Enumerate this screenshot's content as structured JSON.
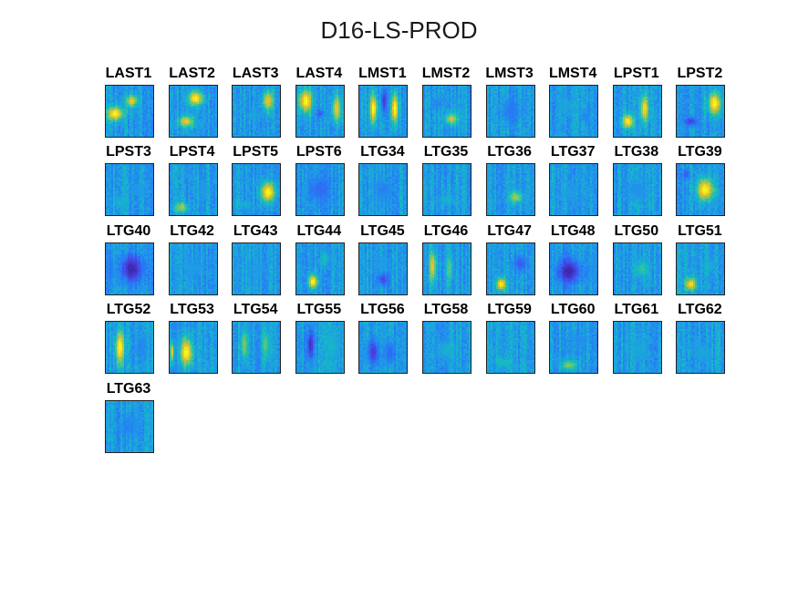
{
  "title": "D16-LS-PROD",
  "chart_data": {
    "type": "heatmap",
    "title": "D16-LS-PROD",
    "colormap": "parula",
    "colors": {
      "low": "#3e26a8",
      "mid": "#2f9ef0",
      "high": "#f9fb15"
    },
    "panels": [
      {
        "label": "LAST1",
        "blobs": [
          [
            0.2,
            0.55,
            0.45,
            0.35,
            1.0
          ],
          [
            0.55,
            0.3,
            0.3,
            0.3,
            0.9
          ]
        ]
      },
      {
        "label": "LAST2",
        "blobs": [
          [
            0.55,
            0.25,
            0.4,
            0.35,
            1.0
          ],
          [
            0.35,
            0.7,
            0.4,
            0.3,
            0.9
          ]
        ]
      },
      {
        "label": "LAST3",
        "blobs": [
          [
            0.75,
            0.3,
            0.3,
            0.5,
            0.9
          ],
          [
            0.45,
            0.6,
            0.3,
            0.2,
            0.5
          ]
        ]
      },
      {
        "label": "LAST4",
        "blobs": [
          [
            0.2,
            0.3,
            0.35,
            0.6,
            1.0
          ],
          [
            0.85,
            0.45,
            0.25,
            0.7,
            0.9
          ],
          [
            0.5,
            0.55,
            0.2,
            0.2,
            0.2
          ]
        ]
      },
      {
        "label": "LMST1",
        "blobs": [
          [
            0.3,
            0.45,
            0.2,
            0.8,
            1.0
          ],
          [
            0.75,
            0.45,
            0.2,
            0.8,
            1.0
          ],
          [
            0.52,
            0.3,
            0.15,
            0.6,
            0.1
          ]
        ]
      },
      {
        "label": "LMST2",
        "blobs": [
          [
            0.6,
            0.65,
            0.35,
            0.3,
            0.85
          ],
          [
            0.3,
            0.35,
            0.3,
            0.3,
            0.35
          ]
        ]
      },
      {
        "label": "LMST3",
        "blobs": [
          [
            0.5,
            0.5,
            0.5,
            0.5,
            0.3
          ]
        ]
      },
      {
        "label": "LMST4",
        "blobs": [
          [
            0.35,
            0.4,
            0.35,
            0.4,
            0.5
          ],
          [
            0.75,
            0.6,
            0.25,
            0.3,
            0.35
          ]
        ]
      },
      {
        "label": "LPST1",
        "blobs": [
          [
            0.3,
            0.7,
            0.3,
            0.35,
            1.0
          ],
          [
            0.65,
            0.45,
            0.22,
            0.7,
            0.95
          ]
        ]
      },
      {
        "label": "LPST2",
        "blobs": [
          [
            0.8,
            0.35,
            0.35,
            0.55,
            1.0
          ],
          [
            0.3,
            0.7,
            0.3,
            0.2,
            0.1
          ]
        ]
      },
      {
        "label": "LPST3",
        "blobs": [
          [
            0.3,
            0.75,
            0.35,
            0.3,
            0.55
          ],
          [
            0.7,
            0.5,
            0.3,
            0.3,
            0.45
          ]
        ]
      },
      {
        "label": "LPST4",
        "blobs": [
          [
            0.25,
            0.85,
            0.35,
            0.25,
            0.8
          ],
          [
            0.7,
            0.5,
            0.3,
            0.4,
            0.45
          ]
        ]
      },
      {
        "label": "LPST5",
        "blobs": [
          [
            0.75,
            0.55,
            0.4,
            0.5,
            1.0
          ],
          [
            0.3,
            0.8,
            0.3,
            0.2,
            0.55
          ]
        ]
      },
      {
        "label": "LPST6",
        "blobs": [
          [
            0.5,
            0.5,
            0.6,
            0.6,
            0.25
          ]
        ]
      },
      {
        "label": "LTG34",
        "blobs": [
          [
            0.5,
            0.5,
            0.5,
            0.5,
            0.35
          ]
        ]
      },
      {
        "label": "LTG35",
        "blobs": [
          [
            0.5,
            0.7,
            0.45,
            0.25,
            0.55
          ]
        ]
      },
      {
        "label": "LTG36",
        "blobs": [
          [
            0.6,
            0.65,
            0.35,
            0.3,
            0.8
          ]
        ]
      },
      {
        "label": "LTG37",
        "blobs": [
          [
            0.45,
            0.55,
            0.4,
            0.35,
            0.45
          ]
        ]
      },
      {
        "label": "LTG38",
        "blobs": [
          [
            0.5,
            0.5,
            0.5,
            0.5,
            0.4
          ]
        ]
      },
      {
        "label": "LTG39",
        "blobs": [
          [
            0.6,
            0.5,
            0.45,
            0.55,
            1.0
          ],
          [
            0.2,
            0.2,
            0.2,
            0.2,
            0.2
          ]
        ]
      },
      {
        "label": "LTG40",
        "blobs": [
          [
            0.55,
            0.5,
            0.6,
            0.7,
            0.0
          ],
          [
            0.1,
            0.5,
            0.15,
            0.8,
            0.3
          ]
        ]
      },
      {
        "label": "LTG42",
        "blobs": [
          [
            0.5,
            0.5,
            0.5,
            0.5,
            0.45
          ]
        ]
      },
      {
        "label": "LTG43",
        "blobs": [
          [
            0.5,
            0.5,
            0.5,
            0.5,
            0.45
          ]
        ]
      },
      {
        "label": "LTG44",
        "blobs": [
          [
            0.35,
            0.75,
            0.25,
            0.35,
            1.0
          ],
          [
            0.6,
            0.3,
            0.2,
            0.4,
            0.6
          ]
        ]
      },
      {
        "label": "LTG45",
        "blobs": [
          [
            0.5,
            0.7,
            0.3,
            0.3,
            0.15
          ],
          [
            0.5,
            0.4,
            0.5,
            0.4,
            0.45
          ]
        ]
      },
      {
        "label": "LTG46",
        "blobs": [
          [
            0.2,
            0.45,
            0.18,
            0.8,
            0.9
          ],
          [
            0.55,
            0.5,
            0.2,
            0.7,
            0.7
          ]
        ]
      },
      {
        "label": "LTG47",
        "blobs": [
          [
            0.3,
            0.8,
            0.25,
            0.3,
            1.0
          ],
          [
            0.7,
            0.4,
            0.3,
            0.4,
            0.2
          ]
        ]
      },
      {
        "label": "LTG48",
        "blobs": [
          [
            0.4,
            0.55,
            0.6,
            0.6,
            0.0
          ],
          [
            0.9,
            0.5,
            0.2,
            0.6,
            0.4
          ]
        ]
      },
      {
        "label": "LTG50",
        "blobs": [
          [
            0.6,
            0.5,
            0.4,
            0.4,
            0.65
          ]
        ]
      },
      {
        "label": "LTG51",
        "blobs": [
          [
            0.3,
            0.8,
            0.3,
            0.3,
            0.95
          ],
          [
            0.65,
            0.45,
            0.3,
            0.3,
            0.55
          ]
        ]
      },
      {
        "label": "LTG52",
        "blobs": [
          [
            0.3,
            0.5,
            0.25,
            0.8,
            1.0
          ],
          [
            0.75,
            0.5,
            0.3,
            0.5,
            0.35
          ]
        ]
      },
      {
        "label": "LTG53",
        "blobs": [
          [
            0.35,
            0.6,
            0.35,
            0.7,
            1.0
          ],
          [
            0.05,
            0.6,
            0.1,
            0.5,
            0.9
          ]
        ]
      },
      {
        "label": "LTG54",
        "blobs": [
          [
            0.25,
            0.45,
            0.2,
            0.8,
            0.75
          ],
          [
            0.7,
            0.45,
            0.2,
            0.8,
            0.7
          ]
        ]
      },
      {
        "label": "LTG55",
        "blobs": [
          [
            0.3,
            0.45,
            0.2,
            0.8,
            0.05
          ],
          [
            0.75,
            0.5,
            0.3,
            0.8,
            0.55
          ]
        ]
      },
      {
        "label": "LTG56",
        "blobs": [
          [
            0.3,
            0.6,
            0.3,
            0.6,
            0.1
          ],
          [
            0.65,
            0.6,
            0.3,
            0.6,
            0.25
          ]
        ]
      },
      {
        "label": "LTG58",
        "blobs": [
          [
            0.5,
            0.55,
            0.5,
            0.4,
            0.55
          ]
        ]
      },
      {
        "label": "LTG59",
        "blobs": [
          [
            0.35,
            0.8,
            0.4,
            0.25,
            0.6
          ]
        ]
      },
      {
        "label": "LTG60",
        "blobs": [
          [
            0.4,
            0.85,
            0.45,
            0.25,
            0.75
          ],
          [
            0.6,
            0.4,
            0.4,
            0.4,
            0.4
          ]
        ]
      },
      {
        "label": "LTG61",
        "blobs": [
          [
            0.5,
            0.55,
            0.5,
            0.5,
            0.5
          ]
        ]
      },
      {
        "label": "LTG62",
        "blobs": [
          [
            0.55,
            0.6,
            0.4,
            0.4,
            0.5
          ]
        ]
      },
      {
        "label": "LTG63",
        "blobs": [
          [
            0.5,
            0.5,
            0.5,
            0.5,
            0.35
          ]
        ]
      }
    ]
  }
}
